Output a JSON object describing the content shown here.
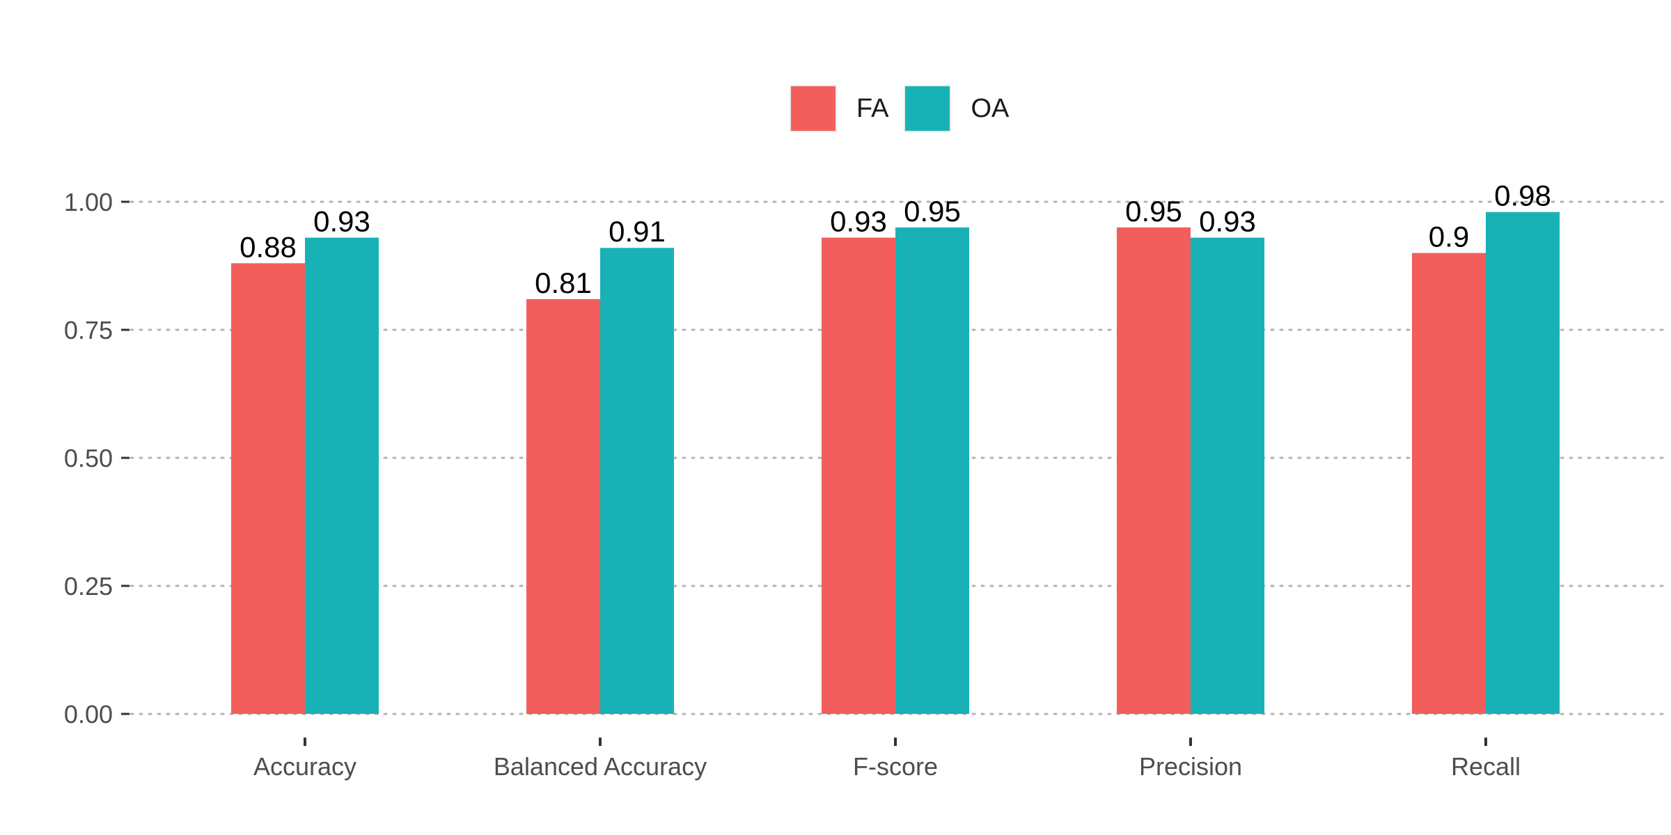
{
  "chart_data": {
    "type": "bar",
    "categories": [
      "Accuracy",
      "Balanced Accuracy",
      "F-score",
      "Precision",
      "Recall"
    ],
    "series": [
      {
        "name": "FA",
        "color": "#F25E5B",
        "values": [
          0.88,
          0.81,
          0.93,
          0.95,
          0.9
        ],
        "labels": [
          "0.88",
          "0.81",
          "0.93",
          "0.95",
          "0.9"
        ]
      },
      {
        "name": "OA",
        "color": "#18B2B6",
        "values": [
          0.93,
          0.91,
          0.95,
          0.93,
          0.98
        ],
        "labels": [
          "0.93",
          "0.91",
          "0.95",
          "0.93",
          "0.98"
        ]
      }
    ],
    "y_ticks": [
      "0.00",
      "0.25",
      "0.50",
      "0.75",
      "1.00"
    ],
    "ylim": [
      0,
      1
    ],
    "grid": "horizontal dotted",
    "legend_position": "top"
  }
}
